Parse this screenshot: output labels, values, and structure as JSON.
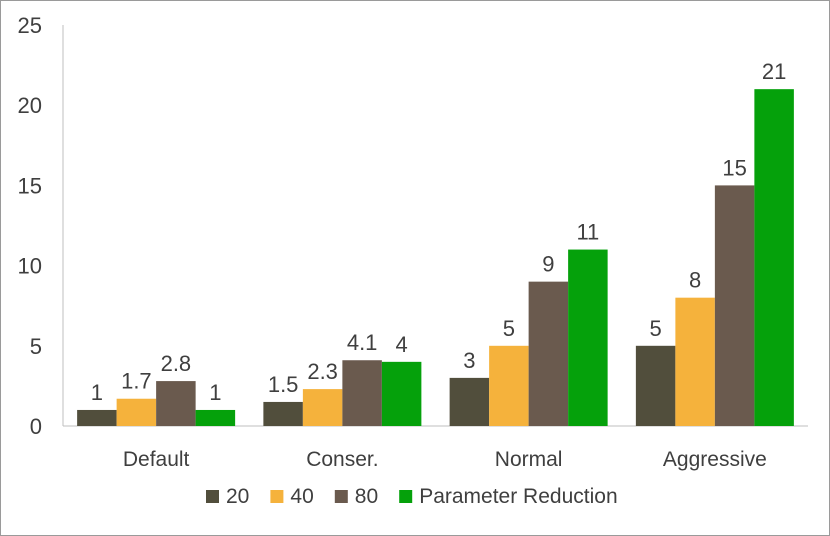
{
  "chart_data": {
    "type": "bar",
    "categories": [
      "Default",
      "Conser.",
      "Normal",
      "Aggressive"
    ],
    "series": [
      {
        "name": "20",
        "color": "#514e3c",
        "values": [
          1,
          1.5,
          3,
          5
        ]
      },
      {
        "name": "40",
        "color": "#f5b23c",
        "values": [
          1.7,
          2.3,
          5,
          8
        ]
      },
      {
        "name": "80",
        "color": "#6a5a4e",
        "values": [
          2.8,
          4.1,
          9,
          15
        ]
      },
      {
        "name": "Parameter Reduction",
        "color": "#05a10b",
        "values": [
          1,
          4,
          11,
          21
        ]
      }
    ],
    "ylim": [
      0,
      25
    ],
    "yticks": [
      0,
      5,
      10,
      15,
      20,
      25
    ],
    "grid": false,
    "legend_position": "bottom",
    "title": "",
    "xlabel": "",
    "ylabel": ""
  }
}
